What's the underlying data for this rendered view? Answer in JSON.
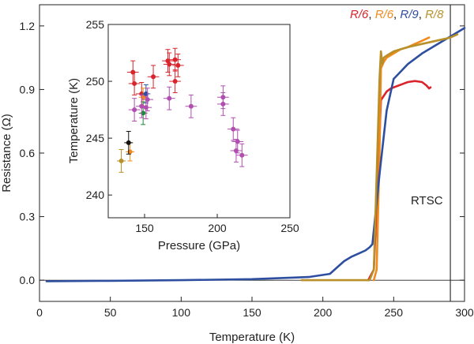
{
  "colors": {
    "red": "#d9242b",
    "orange": "#f08a1c",
    "blue": "#2e4f9f",
    "gold": "#b8902a",
    "magenta": "#b04fb0",
    "black": "#111111",
    "green": "#1e8a3a",
    "axis": "#222222"
  },
  "chart_data": [
    {
      "type": "line",
      "xlabel": "Temperature (K)",
      "ylabel": "Resistance (Ω)",
      "xlim": [
        0,
        300
      ],
      "ylim": [
        -0.1,
        1.3
      ],
      "xticks": [
        0,
        50,
        100,
        150,
        200,
        250,
        300
      ],
      "yticks": [
        0.0,
        0.3,
        0.6,
        0.9,
        1.2
      ],
      "ytick_labels": [
        "0.0",
        "0.3",
        "0.6",
        "0.9",
        "1.2"
      ],
      "legend": [
        {
          "name": "R/6",
          "color": "red"
        },
        {
          "name": "R/6",
          "color": "orange"
        },
        {
          "name": "R/9",
          "color": "blue"
        },
        {
          "name": "R/8",
          "color": "gold"
        }
      ],
      "annotation": {
        "text": "RTSC",
        "vline_x": 290
      },
      "series": [
        {
          "name": "R/6",
          "color": "red",
          "x": [
            232,
            236,
            239,
            241,
            243,
            245,
            248,
            252,
            256,
            260,
            265,
            270,
            273,
            275,
            276
          ],
          "y": [
            0.0,
            0.05,
            0.5,
            0.85,
            0.87,
            0.89,
            0.905,
            0.915,
            0.925,
            0.935,
            0.94,
            0.935,
            0.92,
            0.905,
            0.91
          ]
        },
        {
          "name": "R/6",
          "color": "orange",
          "x": [
            236,
            238,
            240,
            241,
            243,
            245,
            250,
            255,
            260,
            265,
            270,
            275
          ],
          "y": [
            0.0,
            0.05,
            0.6,
            1.0,
            1.03,
            1.05,
            1.07,
            1.09,
            1.1,
            1.115,
            1.13,
            1.145
          ]
        },
        {
          "name": "R/9",
          "color": "blue",
          "x": [
            5,
            50,
            100,
            150,
            190,
            205,
            210,
            215,
            220,
            225,
            230,
            233,
            235,
            240,
            245,
            250,
            260,
            270,
            280,
            290,
            300
          ],
          "y": [
            -0.005,
            -0.003,
            0.0,
            0.005,
            0.015,
            0.03,
            0.06,
            0.09,
            0.11,
            0.125,
            0.14,
            0.155,
            0.17,
            0.5,
            0.8,
            0.95,
            1.02,
            1.07,
            1.11,
            1.15,
            1.19
          ]
        },
        {
          "name": "R/8",
          "color": "gold",
          "x": [
            185,
            200,
            220,
            233,
            236,
            238,
            240,
            241,
            242,
            243,
            245,
            250,
            260,
            270,
            280,
            290,
            295
          ],
          "y": [
            0.0,
            0.0,
            0.0,
            0.0,
            0.05,
            0.5,
            0.95,
            1.08,
            1.02,
            1.05,
            1.06,
            1.08,
            1.1,
            1.115,
            1.13,
            1.145,
            1.16
          ]
        }
      ]
    },
    {
      "type": "scatter",
      "xlabel": "Pressure (GPa)",
      "ylabel": "Temperature (K)",
      "xlim": [
        125,
        250
      ],
      "ylim": [
        238,
        255
      ],
      "xticks": [
        150,
        200,
        250
      ],
      "yticks": [
        240,
        245,
        250,
        255
      ],
      "series": [
        {
          "color": "red",
          "x": [
            142,
            143,
            148,
            156,
            166,
            167,
            171,
            173,
            171
          ],
          "y": [
            250.8,
            249.8,
            248.9,
            250.4,
            251.8,
            251.5,
            251.9,
            251.4,
            250.0
          ],
          "xerr": 4,
          "yerr": 1.0
        },
        {
          "color": "orange",
          "x": [
            140,
            149
          ],
          "y": [
            243.8,
            248.6
          ],
          "xerr": 3,
          "yerr": 0.8
        },
        {
          "color": "blue",
          "x": [
            151
          ],
          "y": [
            248.9
          ],
          "xerr": 3,
          "yerr": 0.8
        },
        {
          "color": "gold",
          "x": [
            134
          ],
          "y": [
            243.0
          ],
          "xerr": 3,
          "yerr": 1.0
        },
        {
          "color": "black",
          "x": [
            139
          ],
          "y": [
            244.6
          ],
          "xerr": 3,
          "yerr": 1.0
        },
        {
          "color": "green",
          "x": [
            149
          ],
          "y": [
            247.2
          ],
          "xerr": 3,
          "yerr": 1.0
        },
        {
          "color": "magenta",
          "x": [
            143,
            148,
            151,
            152,
            167,
            182,
            204,
            204,
            211,
            214,
            213,
            217
          ],
          "y": [
            247.5,
            247.8,
            247.7,
            248.4,
            248.5,
            247.8,
            248.6,
            248.0,
            245.8,
            244.7,
            243.9,
            243.5
          ],
          "xerr": 4,
          "yerr": 1.0
        }
      ]
    }
  ]
}
